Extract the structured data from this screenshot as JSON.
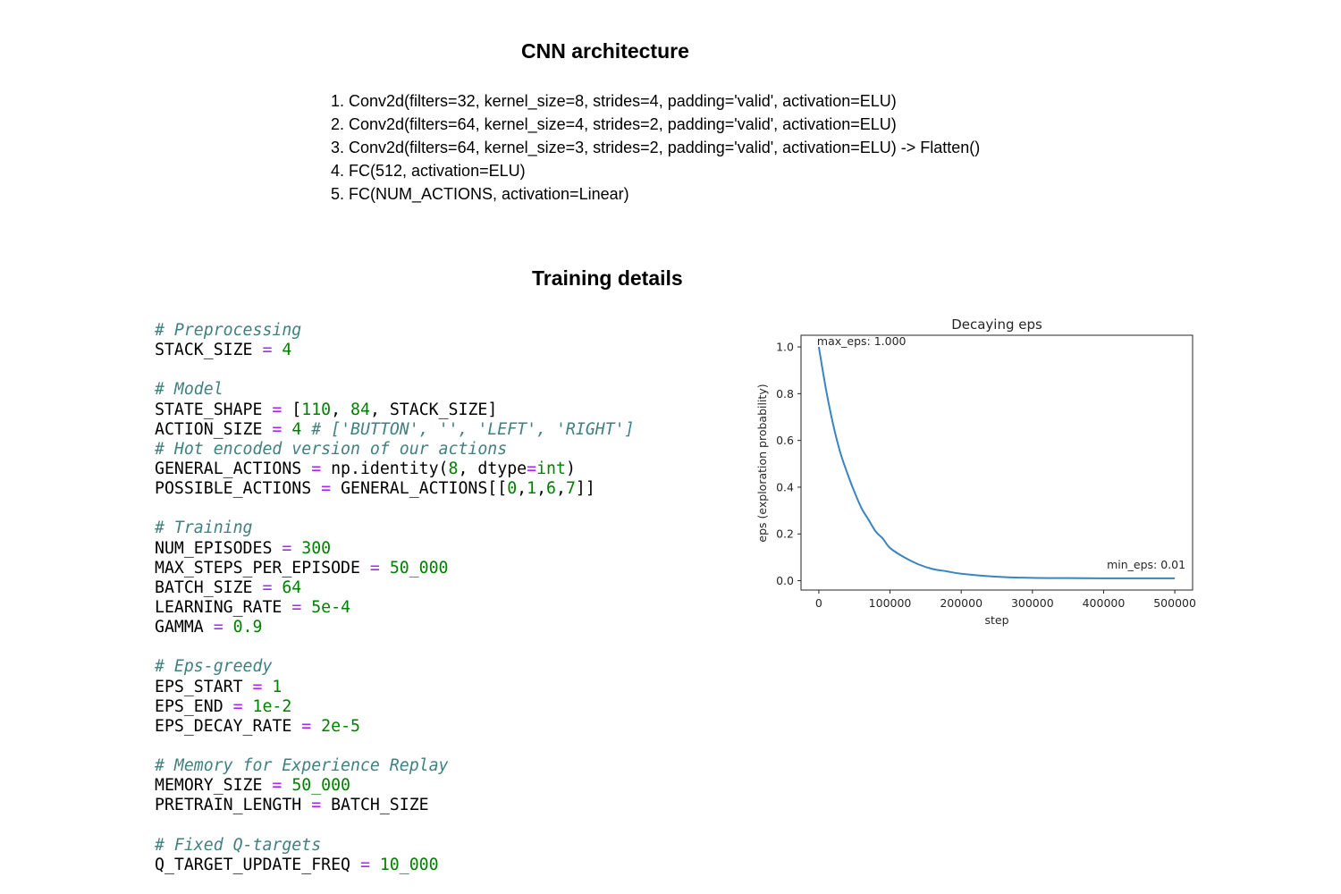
{
  "architecture": {
    "title": "CNN architecture",
    "layers": [
      "1. Conv2d(filters=32, kernel_size=8, strides=4, padding='valid', activation=ELU)",
      "2. Conv2d(filters=64, kernel_size=4, strides=2, padding='valid', activation=ELU)",
      "3. Conv2d(filters=64, kernel_size=3, strides=2, padding='valid', activation=ELU) -> Flatten()",
      "4. FC(512, activation=ELU)",
      "5. FC(NUM_ACTIONS, activation=Linear)"
    ]
  },
  "training": {
    "title": "Training details",
    "code": {
      "preprocessing_comment": "# Preprocessing",
      "stack_size_name": "STACK_SIZE",
      "stack_size_value": "4",
      "model_comment": "# Model",
      "state_shape_name": "STATE_SHAPE",
      "state_shape_v1": "110",
      "state_shape_v2": "84",
      "state_shape_v3": "STACK_SIZE",
      "action_size_name": "ACTION_SIZE",
      "action_size_value": "4",
      "action_size_comment": "# ['BUTTON', '', 'LEFT', 'RIGHT']",
      "hot_encoded_comment": "# Hot encoded version of our actions",
      "general_actions_name": "GENERAL_ACTIONS",
      "general_actions_call": "np.identity(",
      "general_actions_n": "8",
      "general_actions_kw": "dtype",
      "general_actions_type": "int",
      "possible_actions_name": "POSSIBLE_ACTIONS",
      "possible_actions_ref": "GENERAL_ACTIONS[[",
      "possible_actions_i1": "0",
      "possible_actions_i2": "1",
      "possible_actions_i3": "6",
      "possible_actions_i4": "7",
      "training_comment": "# Training",
      "num_episodes_name": "NUM_EPISODES",
      "num_episodes_value": "300",
      "max_steps_name": "MAX_STEPS_PER_EPISODE",
      "max_steps_value": "50_000",
      "batch_size_name": "BATCH_SIZE",
      "batch_size_value": "64",
      "learning_rate_name": "LEARNING_RATE",
      "learning_rate_value": "5e-4",
      "gamma_name": "GAMMA",
      "gamma_value": "0.9",
      "eps_comment": "# Eps-greedy",
      "eps_start_name": "EPS_START",
      "eps_start_value": "1",
      "eps_end_name": "EPS_END",
      "eps_end_value": "1e-2",
      "eps_decay_name": "EPS_DECAY_RATE",
      "eps_decay_value": "2e-5",
      "memory_comment": "# Memory for Experience Replay",
      "memory_size_name": "MEMORY_SIZE",
      "memory_size_value": "50_000",
      "pretrain_name": "PRETRAIN_LENGTH",
      "pretrain_value": "BATCH_SIZE",
      "fixed_q_comment": "# Fixed Q-targets",
      "q_target_name": "Q_TARGET_UPDATE_FREQ",
      "q_target_value": "10_000"
    }
  },
  "chart_data": {
    "type": "line",
    "title": "Decaying eps",
    "xlabel": "step",
    "ylabel": "eps (exploration probability)",
    "xlim": [
      -25000,
      525000
    ],
    "ylim": [
      -0.04,
      1.05
    ],
    "xticks": [
      0,
      100000,
      200000,
      300000,
      400000,
      500000
    ],
    "yticks": [
      0.0,
      0.2,
      0.4,
      0.6,
      0.8,
      1.0
    ],
    "grid": false,
    "line_color": "#3a85c1",
    "series": [
      {
        "x": [
          0,
          10000,
          20000,
          30000,
          40000,
          50000,
          60000,
          70000,
          80000,
          90000,
          100000,
          120000,
          140000,
          160000,
          180000,
          200000,
          250000,
          300000,
          350000,
          400000,
          450000,
          500000
        ],
        "y": [
          1.0,
          0.82,
          0.67,
          0.55,
          0.46,
          0.38,
          0.31,
          0.26,
          0.21,
          0.18,
          0.14,
          0.1,
          0.07,
          0.05,
          0.04,
          0.03,
          0.017,
          0.012,
          0.011,
          0.01,
          0.01,
          0.01
        ]
      }
    ],
    "annotations": [
      {
        "text": "max_eps: 1.000",
        "x": 0,
        "y": 1.0
      },
      {
        "text": "min_eps: 0.01",
        "x": 500000,
        "y": 0.01
      }
    ]
  }
}
